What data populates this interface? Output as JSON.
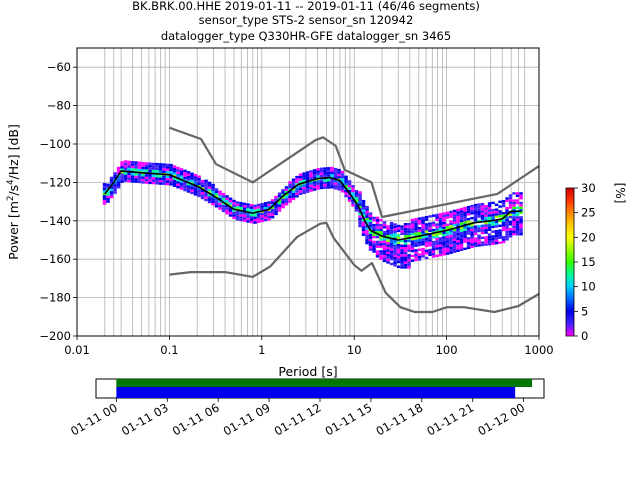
{
  "chart_data": {
    "type": "heatmap",
    "title_lines": [
      "BK.BRK.00.HHE   2019-01-11 -- 2019-01-11  (46/46 segments)",
      "sensor_type STS-2 sensor_sn 120942",
      "datalogger_type Q330HR-GFE datalogger_sn 3465"
    ],
    "xlabel": "Period [s]",
    "ylabel_parts": [
      "Power [m",
      "2",
      "/s",
      "4",
      "/Hz] [dB]"
    ],
    "x_scale": "log",
    "xlim": [
      0.01,
      1000
    ],
    "ylim": [
      -200,
      -50
    ],
    "x_ticks": [
      {
        "value": 0.01,
        "label": "0.01"
      },
      {
        "value": 0.1,
        "label": "0.1"
      },
      {
        "value": 1,
        "label": "1"
      },
      {
        "value": 10,
        "label": "10"
      },
      {
        "value": 100,
        "label": "100"
      },
      {
        "value": 1000,
        "label": "1000"
      }
    ],
    "y_ticks": [
      {
        "value": -200,
        "label": "−200"
      },
      {
        "value": -180,
        "label": "−180"
      },
      {
        "value": -160,
        "label": "−160"
      },
      {
        "value": -140,
        "label": "−140"
      },
      {
        "value": -120,
        "label": "−120"
      },
      {
        "value": -100,
        "label": "−100"
      },
      {
        "value": -80,
        "label": "−80"
      },
      {
        "value": -60,
        "label": "−60"
      }
    ],
    "grid": true,
    "period_gridlines": [
      0.02,
      0.025,
      0.03,
      0.04,
      0.05,
      0.06,
      0.07,
      0.08,
      0.09,
      0.2,
      0.3,
      0.4,
      0.5,
      0.6,
      0.7,
      0.8,
      0.9,
      2,
      3,
      4,
      5,
      6,
      7,
      8,
      9,
      20,
      30,
      40,
      50,
      60,
      70,
      80,
      90,
      200,
      300,
      400,
      500,
      600,
      700
    ],
    "noise_model_high": [
      [
        0.1,
        -91.5
      ],
      [
        0.22,
        -97.4
      ],
      [
        0.32,
        -110.5
      ],
      [
        0.8,
        -120
      ],
      [
        3.8,
        -98
      ],
      [
        4.6,
        -96.5
      ],
      [
        6.3,
        -101
      ],
      [
        7.9,
        -113.5
      ],
      [
        15.4,
        -120
      ],
      [
        20,
        -138
      ],
      [
        354.8,
        -126
      ],
      [
        1000,
        -111.5
      ]
    ],
    "noise_model_low": [
      [
        0.1,
        -168
      ],
      [
        0.17,
        -166.7
      ],
      [
        0.4,
        -166.7
      ],
      [
        0.8,
        -169.2
      ],
      [
        1.24,
        -163.7
      ],
      [
        2.4,
        -148.5
      ],
      [
        4.3,
        -141.5
      ],
      [
        5,
        -141.1
      ],
      [
        6,
        -149
      ],
      [
        10,
        -163
      ],
      [
        12,
        -166
      ],
      [
        15.6,
        -162
      ],
      [
        21.9,
        -177.5
      ],
      [
        31.6,
        -185
      ],
      [
        45,
        -187.5
      ],
      [
        70,
        -187.5
      ],
      [
        101,
        -185
      ],
      [
        154,
        -185
      ],
      [
        328,
        -187.5
      ],
      [
        600,
        -184.4
      ],
      [
        1000,
        -178
      ]
    ],
    "median_curve": [
      [
        0.02,
        -126
      ],
      [
        0.025,
        -120
      ],
      [
        0.03,
        -114
      ],
      [
        0.05,
        -115
      ],
      [
        0.1,
        -116
      ],
      [
        0.2,
        -122
      ],
      [
        0.3,
        -127
      ],
      [
        0.5,
        -134
      ],
      [
        0.8,
        -136
      ],
      [
        1.2,
        -134
      ],
      [
        1.7,
        -127
      ],
      [
        2.5,
        -121
      ],
      [
        4,
        -118
      ],
      [
        5.5,
        -117.5
      ],
      [
        7,
        -119
      ],
      [
        9,
        -126
      ],
      [
        11,
        -132
      ],
      [
        13,
        -140
      ],
      [
        15,
        -145
      ],
      [
        20,
        -148
      ],
      [
        30,
        -150
      ],
      [
        50,
        -148
      ],
      [
        100,
        -145
      ],
      [
        200,
        -141
      ],
      [
        300,
        -140
      ],
      [
        400,
        -139
      ],
      [
        500,
        -135
      ],
      [
        650,
        -135
      ]
    ],
    "colorbar": {
      "label": "[%]",
      "min": 0,
      "max": 30,
      "ticks": [
        "0",
        "5",
        "10",
        "15",
        "20",
        "25",
        "30"
      ],
      "colors": [
        "#ff00ff",
        "#4422ff",
        "#0000ee",
        "#0066ff",
        "#00ccff",
        "#00ff99",
        "#33ff00",
        "#99ff00",
        "#ffff00",
        "#ffcc00",
        "#ff8800",
        "#ff3300",
        "#cc0000"
      ]
    },
    "colors": {
      "noise_model": "#666666",
      "median": "#000000",
      "grid": "#b0b0b0"
    },
    "coverage": {
      "time_ticks": [
        "01-11 00",
        "01-11 03",
        "01-11 06",
        "01-11 09",
        "01-11 12",
        "01-11 15",
        "01-11 18",
        "01-11 21",
        "01-12 00"
      ],
      "time_range_hours": [
        -1.2,
        25.2
      ],
      "data_span_hours": [
        0,
        24.5
      ],
      "used_span_hours": [
        0,
        23.5
      ],
      "data_color": "#007700",
      "used_color": "#0000ee"
    }
  }
}
